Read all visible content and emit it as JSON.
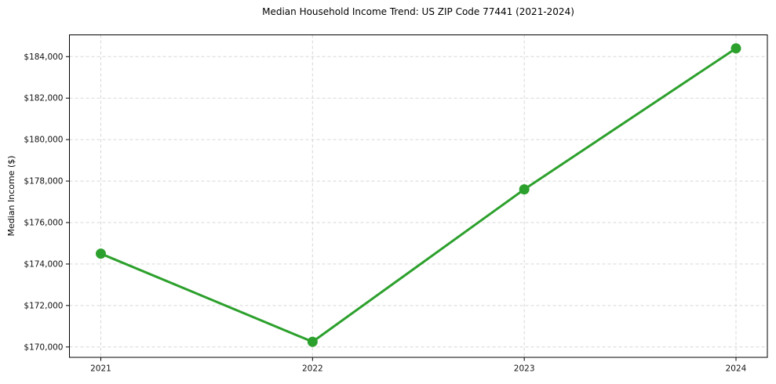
{
  "chart_data": {
    "type": "line",
    "title": "Median Household Income Trend: US ZIP Code 77441 (2021-2024)",
    "ylabel": "Median Income ($)",
    "xlabel": "",
    "x": [
      "2021",
      "2022",
      "2023",
      "2024"
    ],
    "values": [
      174500,
      170250,
      177600,
      184400
    ],
    "yticks": [
      170000,
      172000,
      174000,
      176000,
      178000,
      180000,
      182000,
      184000
    ],
    "ytick_labels": [
      "$170,000",
      "$172,000",
      "$174,000",
      "$176,000",
      "$178,000",
      "$180,000",
      "$182,000",
      "$184,000"
    ],
    "xtick_labels": [
      "2021",
      "2022",
      "2023",
      "2024"
    ],
    "ylim": [
      169500,
      185050
    ],
    "grid": true,
    "grid_style": "dashed",
    "legend": "none",
    "line_color": "#2ca02c",
    "marker_color": "#2ca02c",
    "grid_color": "#d7d7d7",
    "spine_color": "#000000",
    "text_color": "#111111",
    "background": "#ffffff"
  }
}
